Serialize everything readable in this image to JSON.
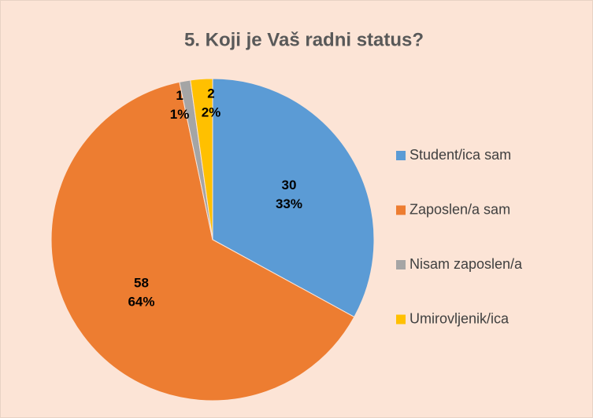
{
  "chart_data": {
    "type": "pie",
    "title": "5. Koji je Vaš radni status?",
    "categories": [
      "Student/ica sam",
      "Zaposlen/a sam",
      "Nisam zaposlen/a",
      "Umirovljenik/ica"
    ],
    "values": [
      30,
      58,
      1,
      2
    ],
    "percent_labels": [
      "33%",
      "64%",
      "1%",
      "2%"
    ],
    "colors": [
      "#5B9BD5",
      "#ED7D31",
      "#A5A5A5",
      "#FFC000"
    ],
    "legend": "right"
  }
}
